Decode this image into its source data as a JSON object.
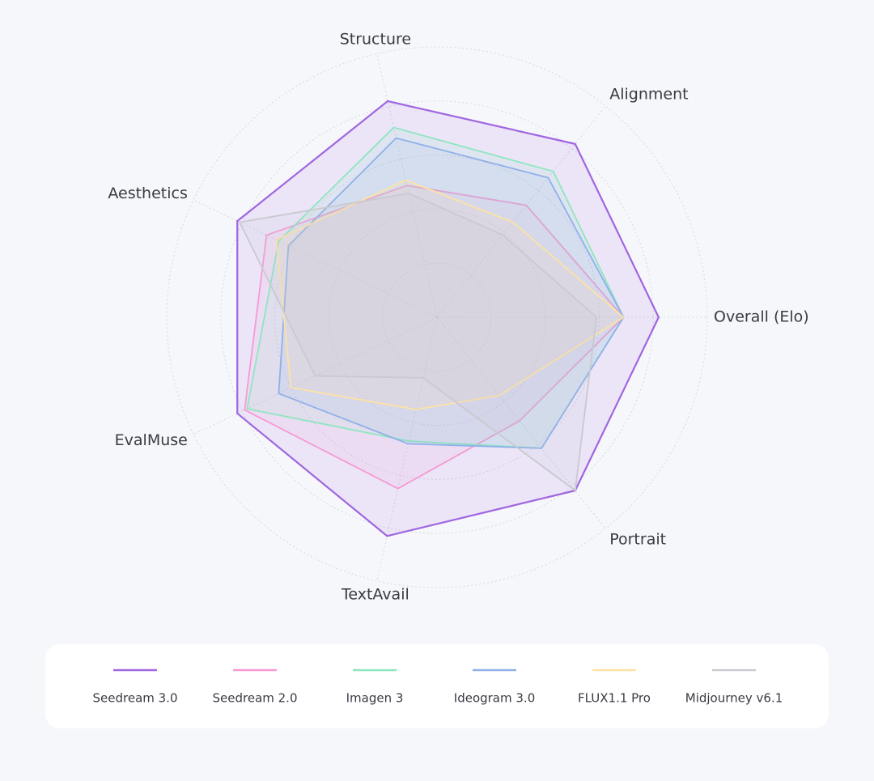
{
  "chart_data": {
    "type": "radar",
    "categories": [
      "Overall (Elo)",
      "Alignment",
      "Structure",
      "Aesthetics",
      "EvalMuse",
      "TextAvail",
      "Portrait"
    ],
    "rlim": [
      0,
      100
    ],
    "rticks": [
      20,
      40,
      60,
      80,
      100
    ],
    "grid": true,
    "legend": "bottom",
    "series": [
      {
        "name": "Seedream 3.0",
        "color": "#a066e0",
        "values": [
          82,
          82,
          82,
          82,
          82,
          83,
          82
        ]
      },
      {
        "name": "Seedream 2.0",
        "color": "#f59ad4",
        "values": [
          69,
          53,
          50,
          70,
          79,
          65,
          49
        ]
      },
      {
        "name": "Imagen 3",
        "color": "#8ee6c0",
        "values": [
          69,
          69,
          72,
          65,
          78,
          47,
          62
        ]
      },
      {
        "name": "Ideogram 3.0",
        "color": "#8fb0ea",
        "values": [
          69,
          66,
          68,
          61,
          65,
          48,
          62
        ]
      },
      {
        "name": "FLUX1.1 Pro",
        "color": "#fde2a4",
        "values": [
          69,
          45,
          52,
          66,
          60,
          35,
          37
        ]
      },
      {
        "name": "Midjourney v6.1",
        "color": "#c9c9cf",
        "values": [
          59,
          39,
          47,
          81,
          50,
          23,
          82
        ]
      }
    ]
  }
}
